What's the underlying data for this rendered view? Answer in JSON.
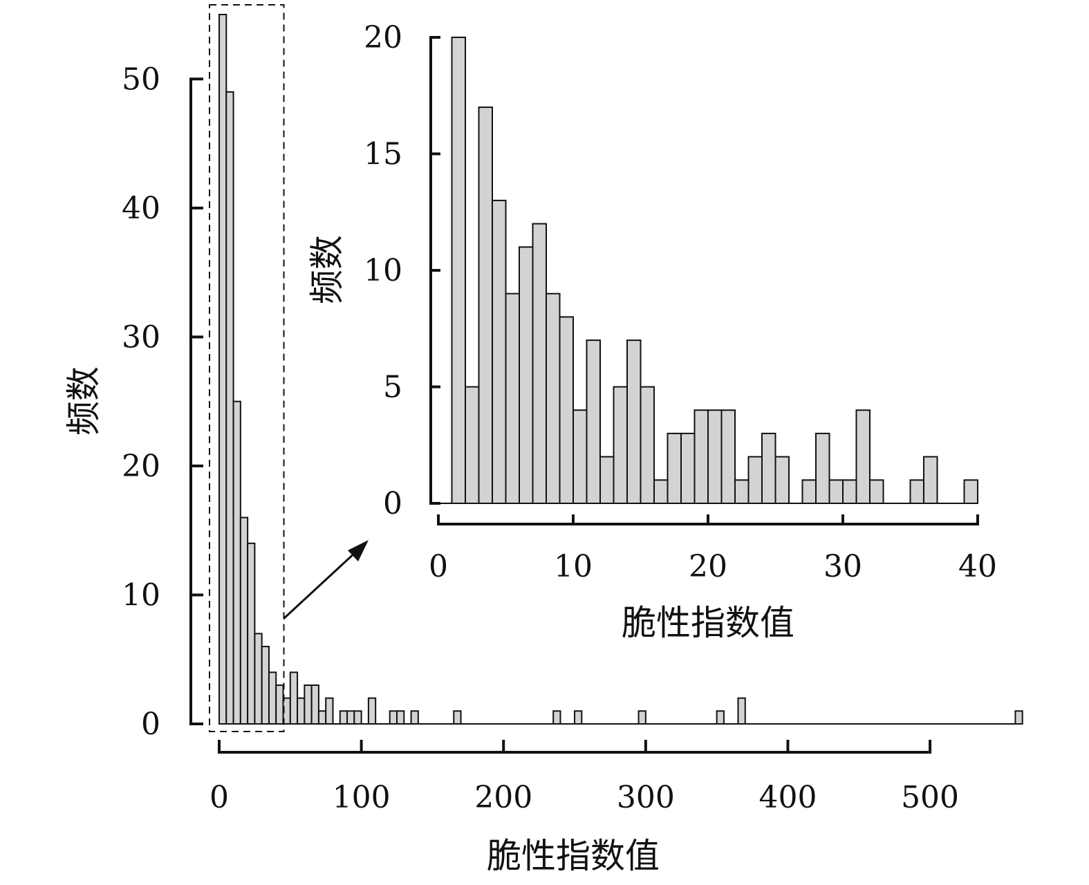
{
  "chart_data": [
    {
      "id": "main",
      "type": "bar",
      "subtype": "histogram",
      "xlabel": "脆性指数值",
      "ylabel": "频数",
      "xlim": [
        0,
        570
      ],
      "ylim": [
        0,
        55
      ],
      "x_ticks": [
        0,
        100,
        200,
        300,
        400,
        500
      ],
      "y_ticks": [
        0,
        10,
        20,
        30,
        40,
        50
      ],
      "bin_width": 5,
      "bins": [
        {
          "x": 0,
          "value": 55
        },
        {
          "x": 5,
          "value": 49
        },
        {
          "x": 10,
          "value": 25
        },
        {
          "x": 15,
          "value": 16
        },
        {
          "x": 20,
          "value": 14
        },
        {
          "x": 25,
          "value": 7
        },
        {
          "x": 30,
          "value": 6
        },
        {
          "x": 35,
          "value": 4
        },
        {
          "x": 40,
          "value": 3
        },
        {
          "x": 45,
          "value": 2
        },
        {
          "x": 50,
          "value": 4
        },
        {
          "x": 55,
          "value": 2
        },
        {
          "x": 60,
          "value": 3
        },
        {
          "x": 65,
          "value": 3
        },
        {
          "x": 70,
          "value": 1
        },
        {
          "x": 75,
          "value": 2
        },
        {
          "x": 85,
          "value": 1
        },
        {
          "x": 90,
          "value": 1
        },
        {
          "x": 95,
          "value": 1
        },
        {
          "x": 105,
          "value": 2
        },
        {
          "x": 120,
          "value": 1
        },
        {
          "x": 125,
          "value": 1
        },
        {
          "x": 135,
          "value": 1
        },
        {
          "x": 165,
          "value": 1
        },
        {
          "x": 235,
          "value": 1
        },
        {
          "x": 250,
          "value": 1
        },
        {
          "x": 295,
          "value": 1
        },
        {
          "x": 350,
          "value": 1
        },
        {
          "x": 365,
          "value": 2
        },
        {
          "x": 560,
          "value": 1
        }
      ],
      "highlight_region_x": [
        0,
        45
      ]
    },
    {
      "id": "inset",
      "type": "bar",
      "subtype": "histogram",
      "xlabel": "脆性指数值",
      "ylabel": "频数",
      "xlim": [
        0,
        40
      ],
      "ylim": [
        0,
        20
      ],
      "x_ticks": [
        0,
        10,
        20,
        30,
        40
      ],
      "y_ticks": [
        0,
        5,
        10,
        15,
        20
      ],
      "bin_width": 1,
      "bins": [
        {
          "x": 1,
          "value": 20
        },
        {
          "x": 2,
          "value": 5
        },
        {
          "x": 3,
          "value": 17
        },
        {
          "x": 4,
          "value": 13
        },
        {
          "x": 5,
          "value": 9
        },
        {
          "x": 6,
          "value": 11
        },
        {
          "x": 7,
          "value": 12
        },
        {
          "x": 8,
          "value": 9
        },
        {
          "x": 9,
          "value": 8
        },
        {
          "x": 10,
          "value": 4
        },
        {
          "x": 11,
          "value": 7
        },
        {
          "x": 12,
          "value": 2
        },
        {
          "x": 13,
          "value": 5
        },
        {
          "x": 14,
          "value": 7
        },
        {
          "x": 15,
          "value": 5
        },
        {
          "x": 16,
          "value": 1
        },
        {
          "x": 17,
          "value": 3
        },
        {
          "x": 18,
          "value": 3
        },
        {
          "x": 19,
          "value": 4
        },
        {
          "x": 20,
          "value": 4
        },
        {
          "x": 21,
          "value": 4
        },
        {
          "x": 22,
          "value": 1
        },
        {
          "x": 23,
          "value": 2
        },
        {
          "x": 24,
          "value": 3
        },
        {
          "x": 25,
          "value": 2
        },
        {
          "x": 27,
          "value": 1
        },
        {
          "x": 28,
          "value": 3
        },
        {
          "x": 29,
          "value": 1
        },
        {
          "x": 30,
          "value": 1
        },
        {
          "x": 31,
          "value": 4
        },
        {
          "x": 32,
          "value": 1
        },
        {
          "x": 35,
          "value": 1
        },
        {
          "x": 36,
          "value": 2
        },
        {
          "x": 39,
          "value": 1
        }
      ]
    }
  ]
}
